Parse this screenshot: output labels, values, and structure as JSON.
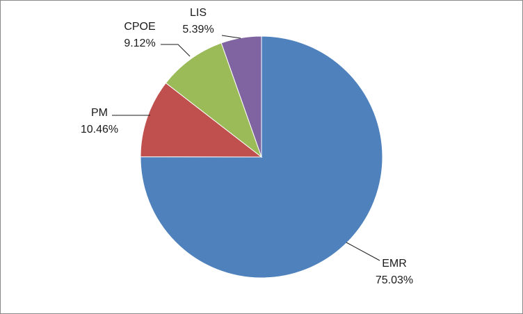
{
  "chart_data": {
    "type": "pie",
    "title": "",
    "start_angle_deg": 0,
    "direction": "clockwise",
    "slices": [
      {
        "label": "EMR",
        "value": 75.03,
        "value_label": "75.03%",
        "color": "#4F81BD"
      },
      {
        "label": "PM",
        "value": 10.46,
        "value_label": "10.46%",
        "color": "#C0504D"
      },
      {
        "label": "CPOE",
        "value": 9.12,
        "value_label": "9.12%",
        "color": "#9BBB59"
      },
      {
        "label": "LIS",
        "value": 5.39,
        "value_label": "5.39%",
        "color": "#8064A2"
      }
    ]
  }
}
